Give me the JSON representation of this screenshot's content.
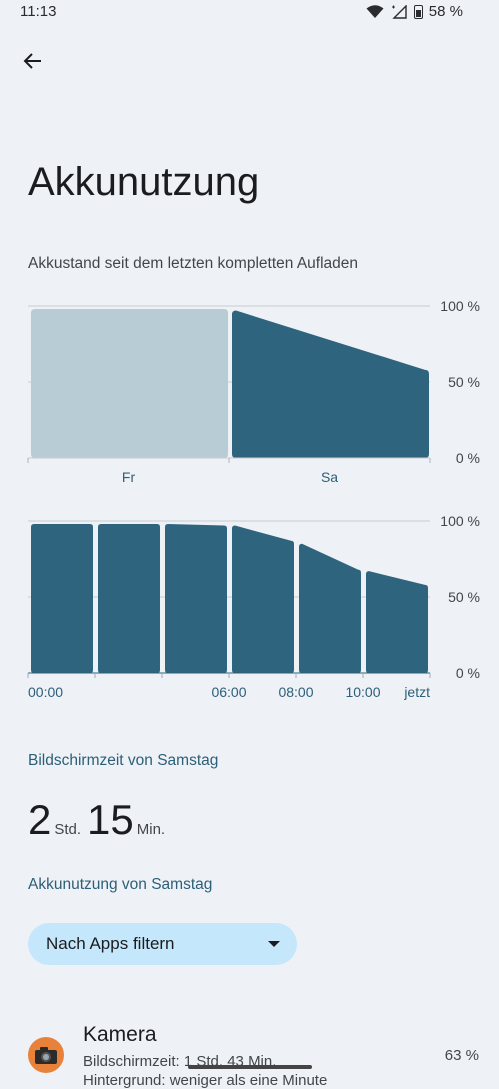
{
  "status_bar": {
    "time": "11:13",
    "battery": "58 %"
  },
  "header": {
    "title": "Akkunutzung"
  },
  "chart_section": {
    "subtitle": "Akkustand seit dem letzten kompletten Aufladen"
  },
  "chart_data": [
    {
      "type": "area",
      "title": "",
      "categories": [
        "Fr",
        "Sa"
      ],
      "y_ticks": [
        "100 %",
        "50 %",
        "0 %"
      ],
      "ylim": [
        0,
        100
      ],
      "series": [
        {
          "segment": "Fr",
          "values": [
            98,
            98
          ],
          "muted": true
        },
        {
          "segment": "Sa",
          "values": [
            97,
            58
          ]
        }
      ],
      "colors": {
        "active": "#2e647e",
        "muted": "#b8ccd5",
        "grid": "#c8ccd0"
      }
    },
    {
      "type": "bar",
      "title": "",
      "x_tick_labels": [
        "00:00",
        "06:00",
        "08:00",
        "10:00",
        "jetzt"
      ],
      "y_ticks": [
        "100 %",
        "50 %",
        "0 %"
      ],
      "ylim": [
        0,
        100
      ],
      "bars": [
        {
          "start": 98,
          "end": 98
        },
        {
          "start": 98,
          "end": 98
        },
        {
          "start": 98,
          "end": 97
        },
        {
          "start": 97,
          "end": 87
        },
        {
          "start": 85,
          "end": 68
        },
        {
          "start": 67,
          "end": 58
        }
      ],
      "colors": {
        "active": "#2e647e",
        "grid": "#c8ccd0"
      }
    }
  ],
  "screen_time": {
    "heading": "Bildschirmzeit von Samstag",
    "hours": "2",
    "hours_unit": "Std.",
    "minutes": "15",
    "minutes_unit": "Min."
  },
  "usage": {
    "heading": "Akkunutzung von Samstag"
  },
  "filter": {
    "label": "Nach Apps filtern"
  },
  "apps": [
    {
      "name": "Kamera",
      "line1": "Bildschirmzeit: 1 Std. 43 Min.",
      "line2": "Hintergrund: weniger als eine Minute",
      "percent": "63 %",
      "icon": "camera-icon"
    }
  ]
}
